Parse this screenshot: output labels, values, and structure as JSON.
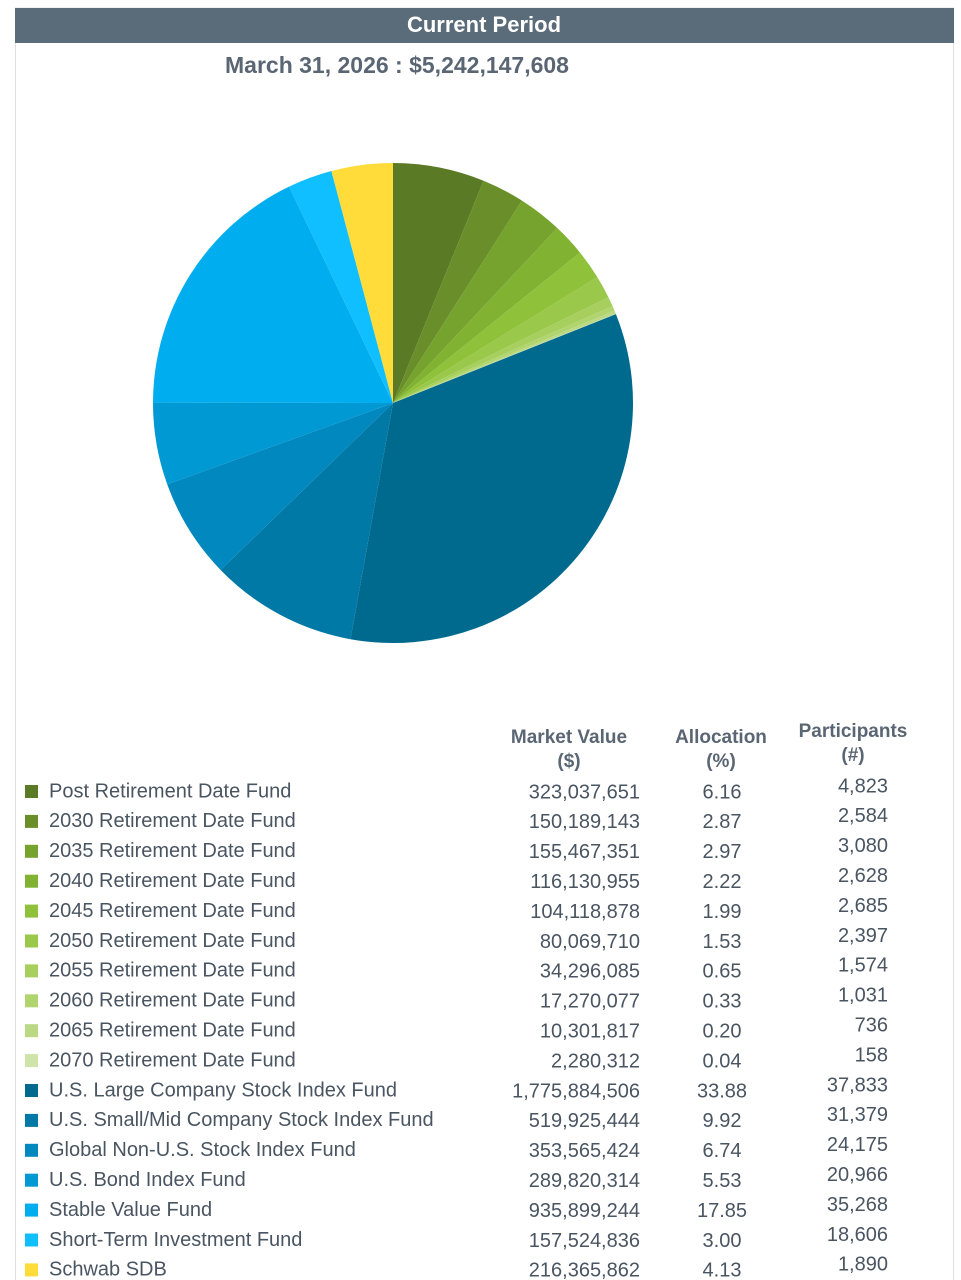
{
  "chart_data": {
    "type": "pie",
    "title": "Current Period",
    "subtitle": "March 31, 2026 : $5,242,147,608",
    "categories": [
      "Post Retirement Date Fund",
      "2030 Retirement Date Fund",
      "2035 Retirement Date Fund",
      "2040 Retirement Date Fund",
      "2045 Retirement Date Fund",
      "2050 Retirement Date Fund",
      "2055 Retirement Date Fund",
      "2060 Retirement Date Fund",
      "2065 Retirement Date Fund",
      "2070 Retirement Date Fund",
      "U.S. Large Company Stock Index Fund",
      "U.S. Small/Mid Company Stock Index Fund",
      "Global Non-U.S. Stock Index Fund",
      "U.S. Bond Index Fund",
      "Stable Value Fund",
      "Short-Term Investment Fund",
      "Schwab SDB"
    ],
    "values": [
      6.16,
      2.87,
      2.97,
      2.22,
      1.99,
      1.53,
      0.65,
      0.33,
      0.2,
      0.04,
      33.88,
      9.92,
      6.74,
      5.53,
      17.85,
      3.0,
      4.13
    ],
    "value_labels": [
      "6.16",
      "2.87",
      "2.97",
      "2.22",
      "1.99",
      "1.53",
      "0.65",
      "0.33",
      "0.20",
      "0.04",
      "33.88",
      "9.92",
      "6.74",
      "5.53",
      "17.85",
      "3.00",
      "4.13"
    ],
    "colors": [
      "#5b7a25",
      "#6a8f2a",
      "#76a22e",
      "#82b232",
      "#8fc13a",
      "#9ac84a",
      "#a6cf5e",
      "#b0d46e",
      "#bbd985",
      "#cfe4a8",
      "#006a8e",
      "#0079a6",
      "#0088bf",
      "#0099d4",
      "#00aeef",
      "#10bfff",
      "#ffdc3a"
    ]
  },
  "table": {
    "headers": [
      [
        "Market Value",
        "($)"
      ],
      [
        "Allocation",
        "(%)"
      ],
      [
        "Participants",
        "(#)"
      ]
    ],
    "market_values": [
      "323,037,651",
      "150,189,143",
      "155,467,351",
      "116,130,955",
      "104,118,878",
      "80,069,710",
      "34,296,085",
      "17,270,077",
      "10,301,817",
      "2,280,312",
      "1,775,884,506",
      "519,925,444",
      "353,565,424",
      "289,820,314",
      "935,899,244",
      "157,524,836",
      "216,365,862"
    ],
    "participants": [
      "4,823",
      "2,584",
      "3,080",
      "2,628",
      "2,685",
      "2,397",
      "1,574",
      "1,031",
      "736",
      "158",
      "37,833",
      "31,379",
      "24,175",
      "20,966",
      "35,268",
      "18,606",
      "1,890"
    ]
  }
}
